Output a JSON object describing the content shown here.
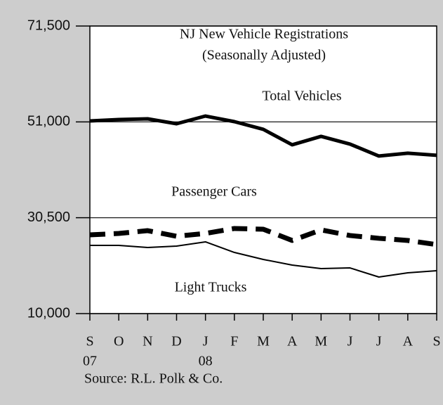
{
  "chart_data": {
    "type": "line",
    "title": [
      "NJ New Vehicle Registrations",
      "(Seasonally Adjusted)"
    ],
    "source": "Source: R.L. Polk & Co.",
    "categories": [
      "S",
      "O",
      "N",
      "D",
      "J",
      "F",
      "M",
      "A",
      "M",
      "J",
      "J",
      "A",
      "S"
    ],
    "year_labels": [
      "07",
      null,
      null,
      null,
      "08",
      null,
      null,
      null,
      null,
      null,
      null,
      null,
      null
    ],
    "series": [
      {
        "name": "Total Vehicles",
        "color": "#000000",
        "values": [
          51200,
          51500,
          51650,
          50600,
          52250,
          51050,
          49400,
          46100,
          47900,
          46250,
          43700,
          44300,
          43850
        ]
      },
      {
        "name": "Passenger Cars",
        "color": "#000000",
        "dashed": true,
        "values": [
          26840,
          27140,
          27740,
          26540,
          27140,
          28200,
          28050,
          25640,
          27900,
          26700,
          26100,
          25640,
          24750
        ]
      },
      {
        "name": "Light Trucks",
        "color": "#000000",
        "values": [
          24580,
          24580,
          24130,
          24430,
          25340,
          23080,
          21580,
          20370,
          19620,
          19770,
          17820,
          18720,
          19170
        ]
      }
    ],
    "ylim": [
      10000,
      71500
    ],
    "yticks": [
      {
        "value": 10000,
        "label": "10,000"
      },
      {
        "value": 30500,
        "label": "30,500"
      },
      {
        "value": 51000,
        "label": "51,000"
      },
      {
        "value": 71500,
        "label": "71,500"
      }
    ],
    "grid": true
  }
}
